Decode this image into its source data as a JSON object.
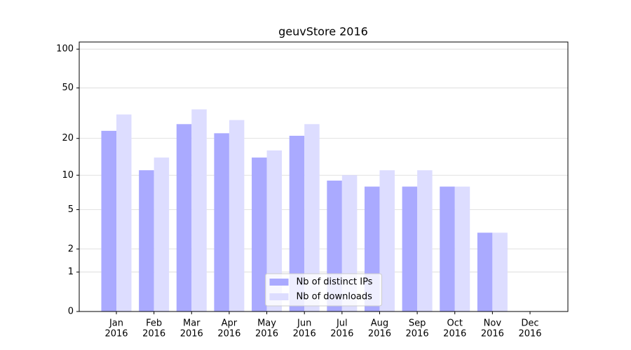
{
  "chart_data": {
    "type": "bar",
    "title": "geuvStore 2016",
    "categories": [
      [
        "Jan",
        "2016"
      ],
      [
        "Feb",
        "2016"
      ],
      [
        "Mar",
        "2016"
      ],
      [
        "Apr",
        "2016"
      ],
      [
        "May",
        "2016"
      ],
      [
        "Jun",
        "2016"
      ],
      [
        "Jul",
        "2016"
      ],
      [
        "Aug",
        "2016"
      ],
      [
        "Sep",
        "2016"
      ],
      [
        "Oct",
        "2016"
      ],
      [
        "Nov",
        "2016"
      ],
      [
        "Dec",
        "2016"
      ]
    ],
    "series": [
      {
        "name": "Nb of distinct IPs",
        "color": "#aaaaff",
        "values": [
          23,
          11,
          26,
          22,
          14,
          21,
          9,
          8,
          8,
          8,
          3,
          0
        ]
      },
      {
        "name": "Nb of downloads",
        "color": "#ddddff",
        "values": [
          31,
          14,
          34,
          28,
          16,
          26,
          10,
          11,
          11,
          8,
          3,
          0
        ]
      }
    ],
    "yscale": "log1p",
    "ylim": [
      0,
      113.5
    ],
    "yticks": [
      0,
      1,
      2,
      5,
      10,
      20,
      50,
      100
    ],
    "grid": true,
    "legend": "lower center"
  }
}
